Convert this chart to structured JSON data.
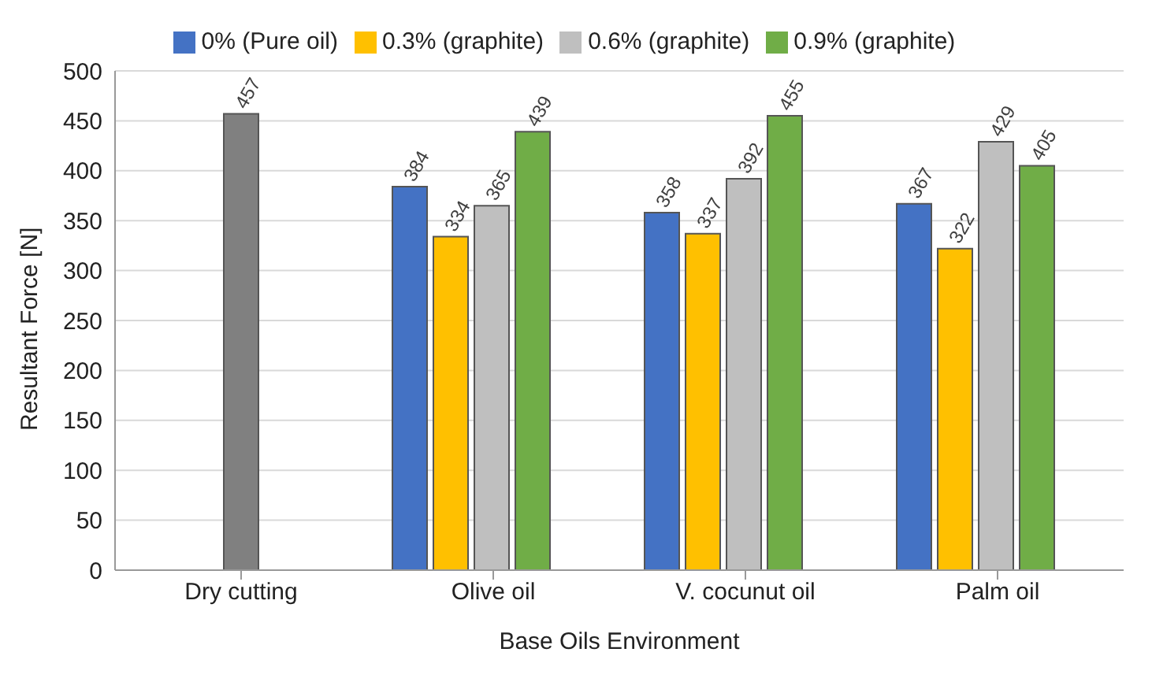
{
  "chart_data": {
    "type": "bar",
    "xlabel": "Base Oils Environment",
    "ylabel": "Resultant Force [N]",
    "categories": [
      "Dry cutting",
      "Olive oil",
      "V. cocunut oil",
      "Palm oil"
    ],
    "series": [
      {
        "name": "0% (Pure oil)",
        "color": "#4472c4",
        "values": [
          null,
          384,
          358,
          367
        ]
      },
      {
        "name": "0.3% (graphite)",
        "color": "#ffc000",
        "values": [
          null,
          334,
          337,
          322
        ]
      },
      {
        "name": "0.6% (graphite)",
        "color": "#bfbfbf",
        "values": [
          null,
          365,
          392,
          429
        ]
      },
      {
        "name": "0.9% (graphite)",
        "color": "#70ad47",
        "values": [
          null,
          439,
          455,
          405
        ]
      },
      {
        "color": "#808080",
        "values": [
          457,
          null,
          null,
          null
        ]
      }
    ],
    "ylim": [
      0,
      500
    ],
    "yticks": [
      0,
      50,
      100,
      150,
      200,
      250,
      300,
      350,
      400,
      450,
      500
    ],
    "grid": "y",
    "legend": "top",
    "data_labels": true
  }
}
